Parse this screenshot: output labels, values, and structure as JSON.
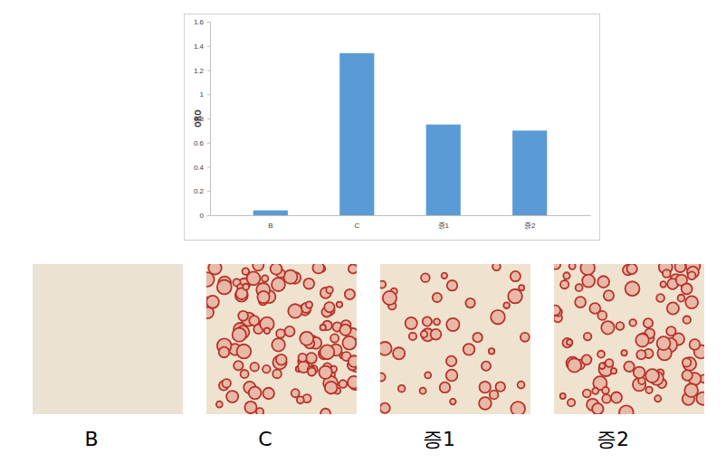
{
  "chart_data": {
    "type": "bar",
    "y_label": "ORO",
    "categories": [
      "B",
      "C",
      "증1",
      "증2"
    ],
    "values": [
      0.04,
      1.34,
      0.75,
      0.7
    ],
    "color": "#5b9bd5",
    "ylim": [
      0,
      1.6
    ],
    "yticks": [
      0,
      0.2,
      0.4,
      0.6,
      0.8,
      1,
      1.2,
      1.4,
      1.6
    ],
    "grid": false,
    "annotations": [
      "B",
      "C",
      "증1",
      "증2"
    ]
  }
}
